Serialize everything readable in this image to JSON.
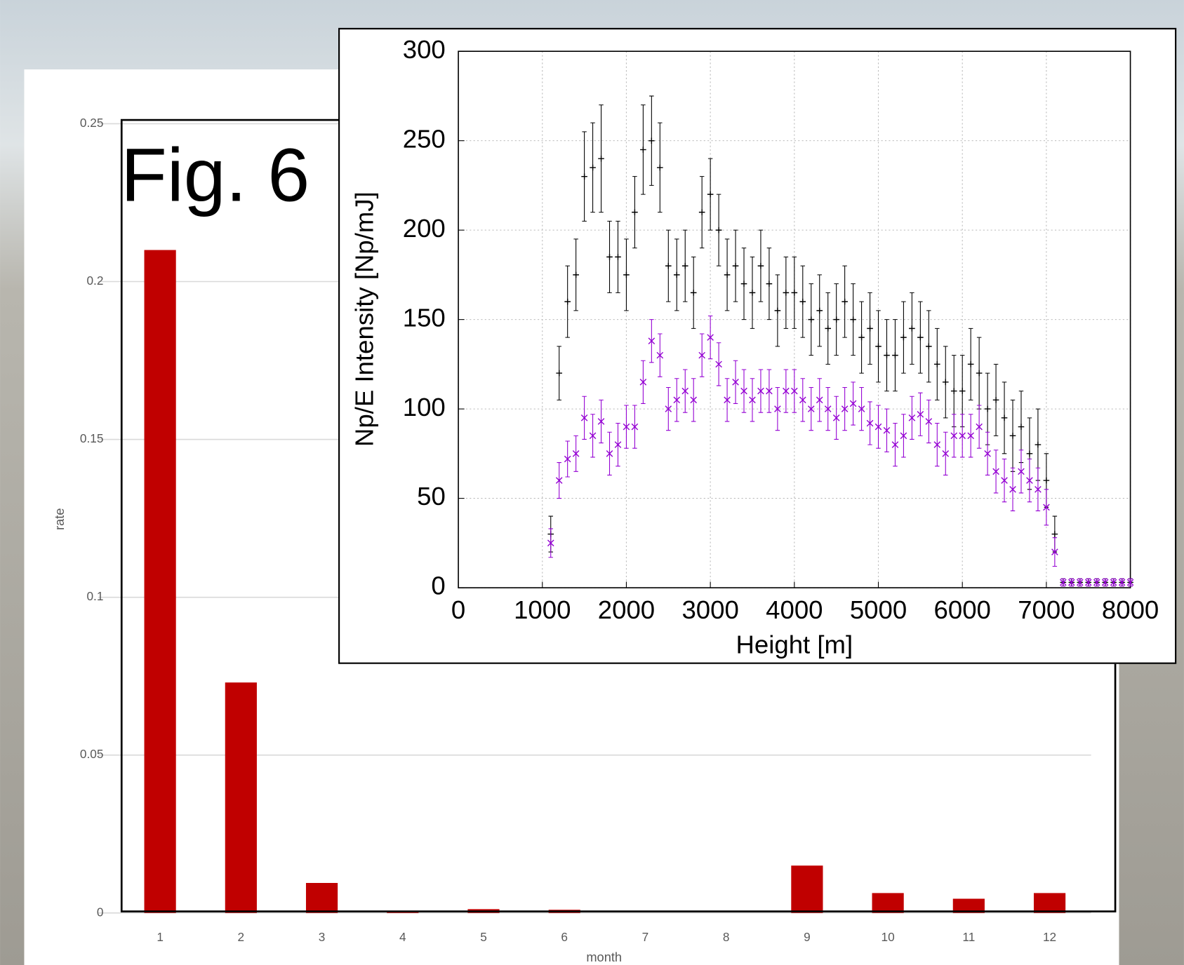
{
  "figure_label": "Fig. 6",
  "chart_data": [
    {
      "type": "bar",
      "xlabel": "month",
      "ylabel": "rate",
      "categories": [
        "1",
        "2",
        "3",
        "4",
        "5",
        "6",
        "7",
        "8",
        "9",
        "10",
        "11",
        "12"
      ],
      "values": [
        0.21,
        0.073,
        0.0095,
        0.0005,
        0.0012,
        0.001,
        0,
        0,
        0.015,
        0.0063,
        0.0045,
        0.0063
      ],
      "color": "#c00000",
      "ylim": [
        0,
        0.25
      ],
      "yticks": [
        0,
        0.05,
        0.1,
        0.15,
        0.2,
        0.25
      ],
      "grid": true
    },
    {
      "type": "scatter",
      "xlabel": "Height [m]",
      "ylabel": "Np/E Intensity [Np/mJ]",
      "x": [
        1100,
        1200,
        1300,
        1400,
        1500,
        1600,
        1700,
        1800,
        1900,
        2000,
        2100,
        2200,
        2300,
        2400,
        2500,
        2600,
        2700,
        2800,
        2900,
        3000,
        3100,
        3200,
        3300,
        3400,
        3500,
        3600,
        3700,
        3800,
        3900,
        4000,
        4100,
        4200,
        4300,
        4400,
        4500,
        4600,
        4700,
        4800,
        4900,
        5000,
        5100,
        5200,
        5300,
        5400,
        5500,
        5600,
        5700,
        5800,
        5900,
        6000,
        6100,
        6200,
        6300,
        6400,
        6500,
        6600,
        6700,
        6800,
        6900,
        7000,
        7100,
        7200,
        7300,
        7400,
        7500,
        7600,
        7700,
        7800,
        7900,
        8000
      ],
      "series": [
        {
          "color": "#000000",
          "marker": "plus",
          "values": [
            30,
            120,
            160,
            175,
            230,
            235,
            240,
            185,
            185,
            175,
            210,
            245,
            250,
            235,
            180,
            175,
            180,
            165,
            210,
            220,
            200,
            175,
            180,
            170,
            165,
            180,
            170,
            155,
            165,
            165,
            160,
            150,
            155,
            145,
            150,
            160,
            150,
            140,
            145,
            135,
            130,
            130,
            140,
            145,
            140,
            135,
            125,
            115,
            110,
            110,
            125,
            120,
            100,
            105,
            95,
            85,
            90,
            75,
            80,
            60,
            30,
            3,
            3,
            3,
            3,
            3,
            3,
            3,
            3,
            3
          ],
          "errors": [
            10,
            15,
            20,
            20,
            25,
            25,
            30,
            20,
            20,
            20,
            20,
            25,
            25,
            25,
            20,
            20,
            20,
            20,
            20,
            20,
            20,
            20,
            20,
            20,
            20,
            20,
            20,
            20,
            20,
            20,
            20,
            20,
            20,
            20,
            20,
            20,
            20,
            20,
            20,
            20,
            20,
            20,
            20,
            20,
            20,
            20,
            20,
            20,
            20,
            20,
            20,
            20,
            20,
            20,
            20,
            20,
            20,
            20,
            20,
            15,
            10,
            2,
            2,
            2,
            2,
            2,
            2,
            2,
            2,
            2
          ]
        },
        {
          "color": "#9400d3",
          "marker": "cross",
          "values": [
            25,
            60,
            72,
            75,
            95,
            85,
            93,
            75,
            80,
            90,
            90,
            115,
            138,
            130,
            100,
            105,
            110,
            105,
            130,
            140,
            125,
            105,
            115,
            110,
            105,
            110,
            110,
            100,
            110,
            110,
            105,
            100,
            105,
            100,
            95,
            100,
            103,
            100,
            92,
            90,
            88,
            80,
            85,
            95,
            97,
            93,
            80,
            75,
            85,
            85,
            85,
            90,
            75,
            65,
            60,
            55,
            65,
            60,
            55,
            45,
            20,
            3,
            3,
            3,
            3,
            3,
            3,
            3,
            3,
            3
          ],
          "errors": [
            8,
            10,
            10,
            10,
            12,
            12,
            12,
            12,
            12,
            12,
            12,
            12,
            12,
            12,
            12,
            12,
            12,
            12,
            12,
            12,
            12,
            12,
            12,
            12,
            12,
            12,
            12,
            12,
            12,
            12,
            12,
            12,
            12,
            12,
            12,
            12,
            12,
            12,
            12,
            12,
            12,
            12,
            12,
            12,
            12,
            12,
            12,
            12,
            12,
            12,
            12,
            12,
            12,
            12,
            12,
            12,
            12,
            12,
            12,
            10,
            8,
            2,
            2,
            2,
            2,
            2,
            2,
            2,
            2,
            2
          ]
        }
      ],
      "xlim": [
        0,
        8000
      ],
      "xticks": [
        0,
        1000,
        2000,
        3000,
        4000,
        5000,
        6000,
        7000,
        8000
      ],
      "ylim": [
        0,
        300
      ],
      "yticks": [
        0,
        50,
        100,
        150,
        200,
        250,
        300
      ],
      "grid": true
    }
  ]
}
